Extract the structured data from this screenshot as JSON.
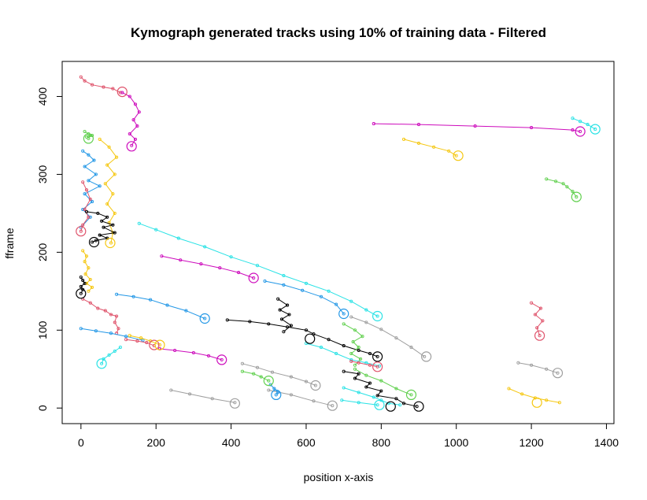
{
  "chart_data": {
    "type": "line",
    "title": "Kymograph generated tracks using 10% of training data - Filtered",
    "xlabel": "position x-axis",
    "ylabel": "fframe",
    "xlim": [
      -50,
      1420
    ],
    "ylim": [
      -20,
      445
    ],
    "x_ticks": [
      0,
      200,
      400,
      600,
      800,
      1000,
      1200,
      1400
    ],
    "y_ticks": [
      0,
      100,
      200,
      300,
      400
    ],
    "grid": false,
    "legend": "none",
    "colors": {
      "black": "#000000",
      "red": "#df536b",
      "green": "#61d04f",
      "blue": "#2297e6",
      "cyan": "#28e2e5",
      "magenta": "#cd0bbc",
      "yellow": "#f5c710",
      "gray": "#9e9e9e"
    },
    "series": [
      {
        "color": "red",
        "x": [
          0,
          10,
          30,
          60,
          85,
          105
        ],
        "y": [
          425,
          420,
          415,
          412,
          410,
          405
        ]
      },
      {
        "color": "magenta",
        "x": [
          110,
          130,
          145,
          155,
          140,
          150,
          130,
          145,
          135
        ],
        "y": [
          405,
          400,
          390,
          380,
          370,
          362,
          352,
          345,
          337
        ]
      },
      {
        "color": "cyan",
        "x": [
          1310,
          1330,
          1350,
          1370
        ],
        "y": [
          372,
          368,
          364,
          358
        ]
      },
      {
        "color": "magenta",
        "x": [
          780,
          900,
          1050,
          1200,
          1310,
          1330
        ],
        "y": [
          365,
          364,
          362,
          360,
          357,
          355
        ]
      },
      {
        "color": "green",
        "x": [
          10,
          20,
          30,
          15,
          25,
          20
        ],
        "y": [
          355,
          352,
          350,
          348,
          350,
          346
        ]
      },
      {
        "color": "yellow",
        "x": [
          860,
          900,
          940,
          980,
          1000
        ],
        "y": [
          345,
          340,
          335,
          330,
          324
        ]
      },
      {
        "color": "green",
        "x": [
          1240,
          1265,
          1285,
          1295,
          1310,
          1320
        ],
        "y": [
          294,
          291,
          288,
          284,
          278,
          271
        ]
      },
      {
        "color": "blue",
        "x": [
          5,
          20,
          35,
          10,
          40,
          20,
          50,
          10,
          30,
          5,
          25,
          0
        ],
        "y": [
          330,
          325,
          318,
          310,
          300,
          292,
          285,
          275,
          265,
          255,
          245,
          232
        ]
      },
      {
        "color": "yellow",
        "x": [
          50,
          75,
          95,
          70,
          90,
          65,
          85,
          70,
          90,
          75,
          85,
          80
        ],
        "y": [
          345,
          335,
          322,
          312,
          300,
          288,
          275,
          262,
          250,
          238,
          225,
          212
        ]
      },
      {
        "color": "red",
        "x": [
          5,
          15,
          25,
          10,
          20,
          5,
          0
        ],
        "y": [
          290,
          280,
          268,
          255,
          245,
          235,
          227
        ]
      },
      {
        "color": "black",
        "x": [
          15,
          45,
          70,
          55,
          85,
          60,
          90,
          50,
          70,
          40,
          30
        ],
        "y": [
          252,
          250,
          245,
          240,
          235,
          232,
          225,
          222,
          218,
          215,
          213
        ]
      },
      {
        "color": "cyan",
        "x": [
          155,
          200,
          260,
          330,
          400,
          470,
          540,
          600,
          660,
          720,
          760,
          790
        ],
        "y": [
          237,
          229,
          218,
          207,
          194,
          183,
          170,
          160,
          150,
          137,
          126,
          118
        ]
      },
      {
        "color": "magenta",
        "x": [
          215,
          265,
          320,
          370,
          420,
          460
        ],
        "y": [
          195,
          190,
          185,
          180,
          174,
          167
        ]
      },
      {
        "color": "yellow",
        "x": [
          5,
          15,
          10,
          20,
          12,
          25,
          15,
          30,
          20
        ],
        "y": [
          202,
          195,
          188,
          180,
          172,
          165,
          160,
          155,
          150
        ]
      },
      {
        "color": "black",
        "x": [
          0,
          5,
          10,
          0,
          5,
          0
        ],
        "y": [
          168,
          164,
          160,
          156,
          152,
          147
        ]
      },
      {
        "color": "red",
        "x": [
          5,
          25,
          45,
          65,
          80,
          95,
          90,
          100,
          95
        ],
        "y": [
          140,
          135,
          128,
          125,
          120,
          118,
          110,
          102,
          96
        ]
      },
      {
        "color": "blue",
        "x": [
          95,
          140,
          185,
          230,
          280,
          330
        ],
        "y": [
          146,
          143,
          139,
          132,
          125,
          115
        ]
      },
      {
        "color": "blue",
        "x": [
          490,
          540,
          590,
          640,
          680,
          700
        ],
        "y": [
          163,
          158,
          151,
          143,
          133,
          121
        ]
      },
      {
        "color": "blue",
        "x": [
          0,
          40,
          80,
          120,
          165
        ],
        "y": [
          102,
          99,
          96,
          92,
          87
        ]
      },
      {
        "color": "red",
        "x": [
          120,
          150,
          175,
          195
        ],
        "y": [
          88,
          86,
          84,
          80
        ]
      },
      {
        "color": "yellow",
        "x": [
          130,
          160,
          185,
          210
        ],
        "y": [
          93,
          90,
          86,
          81
        ]
      },
      {
        "color": "cyan",
        "x": [
          105,
          90,
          75,
          60,
          55
        ],
        "y": [
          78,
          73,
          68,
          63,
          57
        ]
      },
      {
        "color": "magenta",
        "x": [
          210,
          250,
          300,
          340,
          375
        ],
        "y": [
          76,
          74,
          71,
          67,
          62
        ]
      },
      {
        "color": "black",
        "x": [
          390,
          450,
          500,
          550,
          600,
          620,
          660,
          700,
          740,
          770,
          790
        ],
        "y": [
          113,
          111,
          108,
          104,
          100,
          95,
          88,
          80,
          74,
          70,
          66
        ]
      },
      {
        "color": "black",
        "x": [
          525,
          550,
          530,
          555,
          535,
          560,
          540
        ],
        "y": [
          140,
          132,
          126,
          120,
          114,
          106,
          98
        ]
      },
      {
        "color": "red",
        "x": [
          1200,
          1225,
          1210,
          1230,
          1215,
          1222
        ],
        "y": [
          135,
          128,
          120,
          112,
          103,
          93
        ]
      },
      {
        "color": "gray",
        "x": [
          720,
          760,
          800,
          840,
          880,
          915
        ],
        "y": [
          117,
          110,
          101,
          90,
          78,
          66
        ]
      },
      {
        "color": "green",
        "x": [
          700,
          730,
          750,
          725,
          740,
          720,
          745,
          730
        ],
        "y": [
          108,
          100,
          92,
          85,
          78,
          70,
          63,
          55
        ]
      },
      {
        "color": "cyan",
        "x": [
          600,
          640,
          680,
          720,
          760,
          795
        ],
        "y": [
          83,
          78,
          70,
          62,
          58,
          54
        ]
      },
      {
        "color": "red",
        "x": [
          720,
          740,
          770,
          790
        ],
        "y": [
          60,
          58,
          55,
          53
        ]
      },
      {
        "color": "green",
        "x": [
          730,
          760,
          800,
          840,
          880
        ],
        "y": [
          50,
          42,
          35,
          25,
          17
        ]
      },
      {
        "color": "black",
        "x": [
          700,
          740,
          730,
          770,
          760,
          800,
          790,
          840,
          860,
          895
        ],
        "y": [
          47,
          44,
          38,
          32,
          27,
          22,
          16,
          12,
          6,
          2
        ]
      },
      {
        "color": "cyan",
        "x": [
          700,
          740,
          780,
          800,
          820,
          850
        ],
        "y": [
          26,
          20,
          14,
          10,
          6,
          4
        ]
      },
      {
        "color": "gray",
        "x": [
          430,
          470,
          510,
          560,
          600,
          625
        ],
        "y": [
          57,
          52,
          46,
          40,
          34,
          29
        ]
      },
      {
        "color": "green",
        "x": [
          430,
          460,
          480,
          500
        ],
        "y": [
          47,
          44,
          40,
          35
        ]
      },
      {
        "color": "gray",
        "x": [
          500,
          560,
          620,
          670
        ],
        "y": [
          23,
          17,
          9,
          3
        ]
      },
      {
        "color": "cyan",
        "x": [
          695,
          740,
          790
        ],
        "y": [
          10,
          7,
          4
        ]
      },
      {
        "color": "gray",
        "x": [
          240,
          290,
          350,
          410
        ],
        "y": [
          23,
          18,
          12,
          7
        ]
      },
      {
        "color": "blue",
        "x": [
          505,
          515,
          525,
          520
        ],
        "y": [
          30,
          25,
          20,
          17
        ]
      },
      {
        "color": "gray",
        "x": [
          1165,
          1200,
          1240,
          1270
        ],
        "y": [
          58,
          55,
          50,
          45
        ]
      },
      {
        "color": "yellow",
        "x": [
          1140,
          1175,
          1210,
          1240,
          1275
        ],
        "y": [
          25,
          18,
          13,
          10,
          7
        ]
      }
    ],
    "end_markers": [
      {
        "x": 110,
        "y": 406,
        "color": "red"
      },
      {
        "x": 135,
        "y": 336,
        "color": "magenta"
      },
      {
        "x": 1370,
        "y": 358,
        "color": "cyan"
      },
      {
        "x": 1330,
        "y": 355,
        "color": "magenta"
      },
      {
        "x": 20,
        "y": 346,
        "color": "green"
      },
      {
        "x": 1005,
        "y": 324,
        "color": "yellow"
      },
      {
        "x": 1320,
        "y": 271,
        "color": "green"
      },
      {
        "x": 0,
        "y": 227,
        "color": "red"
      },
      {
        "x": 35,
        "y": 213,
        "color": "black"
      },
      {
        "x": 78,
        "y": 212,
        "color": "yellow"
      },
      {
        "x": 460,
        "y": 167,
        "color": "magenta"
      },
      {
        "x": 0,
        "y": 147,
        "color": "black"
      },
      {
        "x": 790,
        "y": 118,
        "color": "cyan"
      },
      {
        "x": 700,
        "y": 121,
        "color": "blue"
      },
      {
        "x": 330,
        "y": 115,
        "color": "blue"
      },
      {
        "x": 610,
        "y": 89,
        "color": "black"
      },
      {
        "x": 1222,
        "y": 93,
        "color": "red"
      },
      {
        "x": 195,
        "y": 81,
        "color": "red"
      },
      {
        "x": 210,
        "y": 81,
        "color": "yellow"
      },
      {
        "x": 790,
        "y": 66,
        "color": "black"
      },
      {
        "x": 920,
        "y": 66,
        "color": "gray"
      },
      {
        "x": 375,
        "y": 62,
        "color": "magenta"
      },
      {
        "x": 55,
        "y": 57,
        "color": "cyan"
      },
      {
        "x": 790,
        "y": 53,
        "color": "red"
      },
      {
        "x": 1270,
        "y": 45,
        "color": "gray"
      },
      {
        "x": 500,
        "y": 35,
        "color": "green"
      },
      {
        "x": 625,
        "y": 29,
        "color": "gray"
      },
      {
        "x": 520,
        "y": 17,
        "color": "blue"
      },
      {
        "x": 880,
        "y": 17,
        "color": "green"
      },
      {
        "x": 410,
        "y": 6,
        "color": "gray"
      },
      {
        "x": 1215,
        "y": 7,
        "color": "yellow"
      },
      {
        "x": 670,
        "y": 3,
        "color": "gray"
      },
      {
        "x": 795,
        "y": 4,
        "color": "cyan"
      },
      {
        "x": 825,
        "y": 2,
        "color": "black"
      },
      {
        "x": 900,
        "y": 2,
        "color": "black"
      }
    ]
  }
}
